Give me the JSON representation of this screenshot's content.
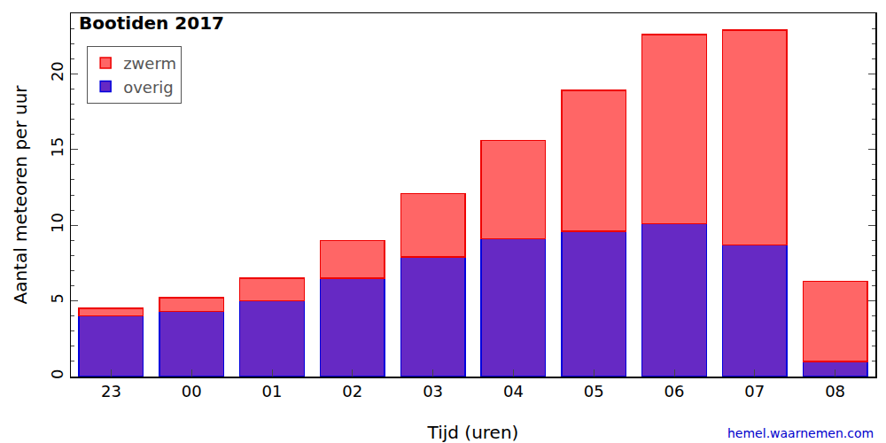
{
  "chart_data": {
    "type": "bar",
    "title": "Bootiden 2017",
    "x_label": "Tijd (uren)",
    "y_label": "Aantal meteoren per uur",
    "categories": [
      "23",
      "00",
      "01",
      "02",
      "03",
      "04",
      "05",
      "06",
      "07",
      "08"
    ],
    "stacked": true,
    "series": [
      {
        "name": "overig",
        "color": "#6629c4",
        "values": [
          4.0,
          4.3,
          5.0,
          6.5,
          7.9,
          9.1,
          9.6,
          10.1,
          8.7,
          1.0
        ]
      },
      {
        "name": "zwerm",
        "color": "#ff6666",
        "values": [
          0.5,
          0.9,
          1.5,
          2.5,
          4.2,
          6.5,
          9.3,
          12.5,
          14.2,
          5.3
        ]
      }
    ],
    "ylim": [
      0,
      24
    ],
    "yticks": [
      0,
      5,
      10,
      15,
      20
    ],
    "grid": false,
    "legend": "upper left",
    "annotations": [
      {
        "text": "hemel.waarnemen.com"
      }
    ]
  }
}
